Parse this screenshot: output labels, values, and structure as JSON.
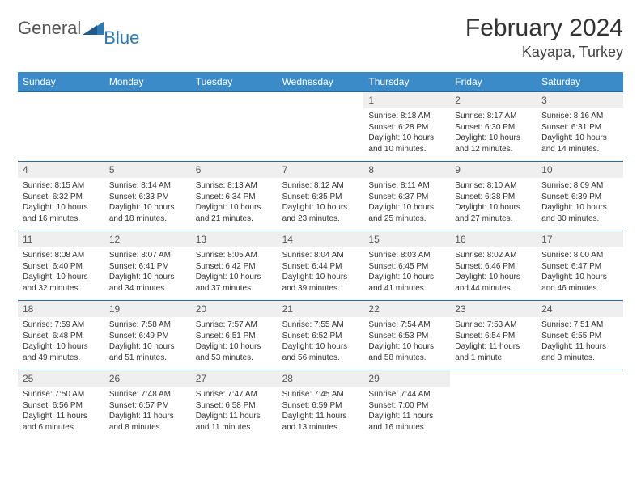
{
  "logo": {
    "text1": "General",
    "text2": "Blue"
  },
  "title": "February 2024",
  "subtitle": "Kayapa, Turkey",
  "colors": {
    "header_bg": "#3b8bc8",
    "header_fg": "#ffffff",
    "cell_border": "#34679a",
    "daynum_bg": "#efefef",
    "logo_gray": "#555555",
    "logo_blue": "#2a7ab8"
  },
  "day_headers": [
    "Sunday",
    "Monday",
    "Tuesday",
    "Wednesday",
    "Thursday",
    "Friday",
    "Saturday"
  ],
  "weeks": [
    [
      {
        "n": "",
        "sr": "",
        "ss": "",
        "dl": ""
      },
      {
        "n": "",
        "sr": "",
        "ss": "",
        "dl": ""
      },
      {
        "n": "",
        "sr": "",
        "ss": "",
        "dl": ""
      },
      {
        "n": "",
        "sr": "",
        "ss": "",
        "dl": ""
      },
      {
        "n": "1",
        "sr": "Sunrise: 8:18 AM",
        "ss": "Sunset: 6:28 PM",
        "dl": "Daylight: 10 hours and 10 minutes."
      },
      {
        "n": "2",
        "sr": "Sunrise: 8:17 AM",
        "ss": "Sunset: 6:30 PM",
        "dl": "Daylight: 10 hours and 12 minutes."
      },
      {
        "n": "3",
        "sr": "Sunrise: 8:16 AM",
        "ss": "Sunset: 6:31 PM",
        "dl": "Daylight: 10 hours and 14 minutes."
      }
    ],
    [
      {
        "n": "4",
        "sr": "Sunrise: 8:15 AM",
        "ss": "Sunset: 6:32 PM",
        "dl": "Daylight: 10 hours and 16 minutes."
      },
      {
        "n": "5",
        "sr": "Sunrise: 8:14 AM",
        "ss": "Sunset: 6:33 PM",
        "dl": "Daylight: 10 hours and 18 minutes."
      },
      {
        "n": "6",
        "sr": "Sunrise: 8:13 AM",
        "ss": "Sunset: 6:34 PM",
        "dl": "Daylight: 10 hours and 21 minutes."
      },
      {
        "n": "7",
        "sr": "Sunrise: 8:12 AM",
        "ss": "Sunset: 6:35 PM",
        "dl": "Daylight: 10 hours and 23 minutes."
      },
      {
        "n": "8",
        "sr": "Sunrise: 8:11 AM",
        "ss": "Sunset: 6:37 PM",
        "dl": "Daylight: 10 hours and 25 minutes."
      },
      {
        "n": "9",
        "sr": "Sunrise: 8:10 AM",
        "ss": "Sunset: 6:38 PM",
        "dl": "Daylight: 10 hours and 27 minutes."
      },
      {
        "n": "10",
        "sr": "Sunrise: 8:09 AM",
        "ss": "Sunset: 6:39 PM",
        "dl": "Daylight: 10 hours and 30 minutes."
      }
    ],
    [
      {
        "n": "11",
        "sr": "Sunrise: 8:08 AM",
        "ss": "Sunset: 6:40 PM",
        "dl": "Daylight: 10 hours and 32 minutes."
      },
      {
        "n": "12",
        "sr": "Sunrise: 8:07 AM",
        "ss": "Sunset: 6:41 PM",
        "dl": "Daylight: 10 hours and 34 minutes."
      },
      {
        "n": "13",
        "sr": "Sunrise: 8:05 AM",
        "ss": "Sunset: 6:42 PM",
        "dl": "Daylight: 10 hours and 37 minutes."
      },
      {
        "n": "14",
        "sr": "Sunrise: 8:04 AM",
        "ss": "Sunset: 6:44 PM",
        "dl": "Daylight: 10 hours and 39 minutes."
      },
      {
        "n": "15",
        "sr": "Sunrise: 8:03 AM",
        "ss": "Sunset: 6:45 PM",
        "dl": "Daylight: 10 hours and 41 minutes."
      },
      {
        "n": "16",
        "sr": "Sunrise: 8:02 AM",
        "ss": "Sunset: 6:46 PM",
        "dl": "Daylight: 10 hours and 44 minutes."
      },
      {
        "n": "17",
        "sr": "Sunrise: 8:00 AM",
        "ss": "Sunset: 6:47 PM",
        "dl": "Daylight: 10 hours and 46 minutes."
      }
    ],
    [
      {
        "n": "18",
        "sr": "Sunrise: 7:59 AM",
        "ss": "Sunset: 6:48 PM",
        "dl": "Daylight: 10 hours and 49 minutes."
      },
      {
        "n": "19",
        "sr": "Sunrise: 7:58 AM",
        "ss": "Sunset: 6:49 PM",
        "dl": "Daylight: 10 hours and 51 minutes."
      },
      {
        "n": "20",
        "sr": "Sunrise: 7:57 AM",
        "ss": "Sunset: 6:51 PM",
        "dl": "Daylight: 10 hours and 53 minutes."
      },
      {
        "n": "21",
        "sr": "Sunrise: 7:55 AM",
        "ss": "Sunset: 6:52 PM",
        "dl": "Daylight: 10 hours and 56 minutes."
      },
      {
        "n": "22",
        "sr": "Sunrise: 7:54 AM",
        "ss": "Sunset: 6:53 PM",
        "dl": "Daylight: 10 hours and 58 minutes."
      },
      {
        "n": "23",
        "sr": "Sunrise: 7:53 AM",
        "ss": "Sunset: 6:54 PM",
        "dl": "Daylight: 11 hours and 1 minute."
      },
      {
        "n": "24",
        "sr": "Sunrise: 7:51 AM",
        "ss": "Sunset: 6:55 PM",
        "dl": "Daylight: 11 hours and 3 minutes."
      }
    ],
    [
      {
        "n": "25",
        "sr": "Sunrise: 7:50 AM",
        "ss": "Sunset: 6:56 PM",
        "dl": "Daylight: 11 hours and 6 minutes."
      },
      {
        "n": "26",
        "sr": "Sunrise: 7:48 AM",
        "ss": "Sunset: 6:57 PM",
        "dl": "Daylight: 11 hours and 8 minutes."
      },
      {
        "n": "27",
        "sr": "Sunrise: 7:47 AM",
        "ss": "Sunset: 6:58 PM",
        "dl": "Daylight: 11 hours and 11 minutes."
      },
      {
        "n": "28",
        "sr": "Sunrise: 7:45 AM",
        "ss": "Sunset: 6:59 PM",
        "dl": "Daylight: 11 hours and 13 minutes."
      },
      {
        "n": "29",
        "sr": "Sunrise: 7:44 AM",
        "ss": "Sunset: 7:00 PM",
        "dl": "Daylight: 11 hours and 16 minutes."
      },
      {
        "n": "",
        "sr": "",
        "ss": "",
        "dl": ""
      },
      {
        "n": "",
        "sr": "",
        "ss": "",
        "dl": ""
      }
    ]
  ]
}
